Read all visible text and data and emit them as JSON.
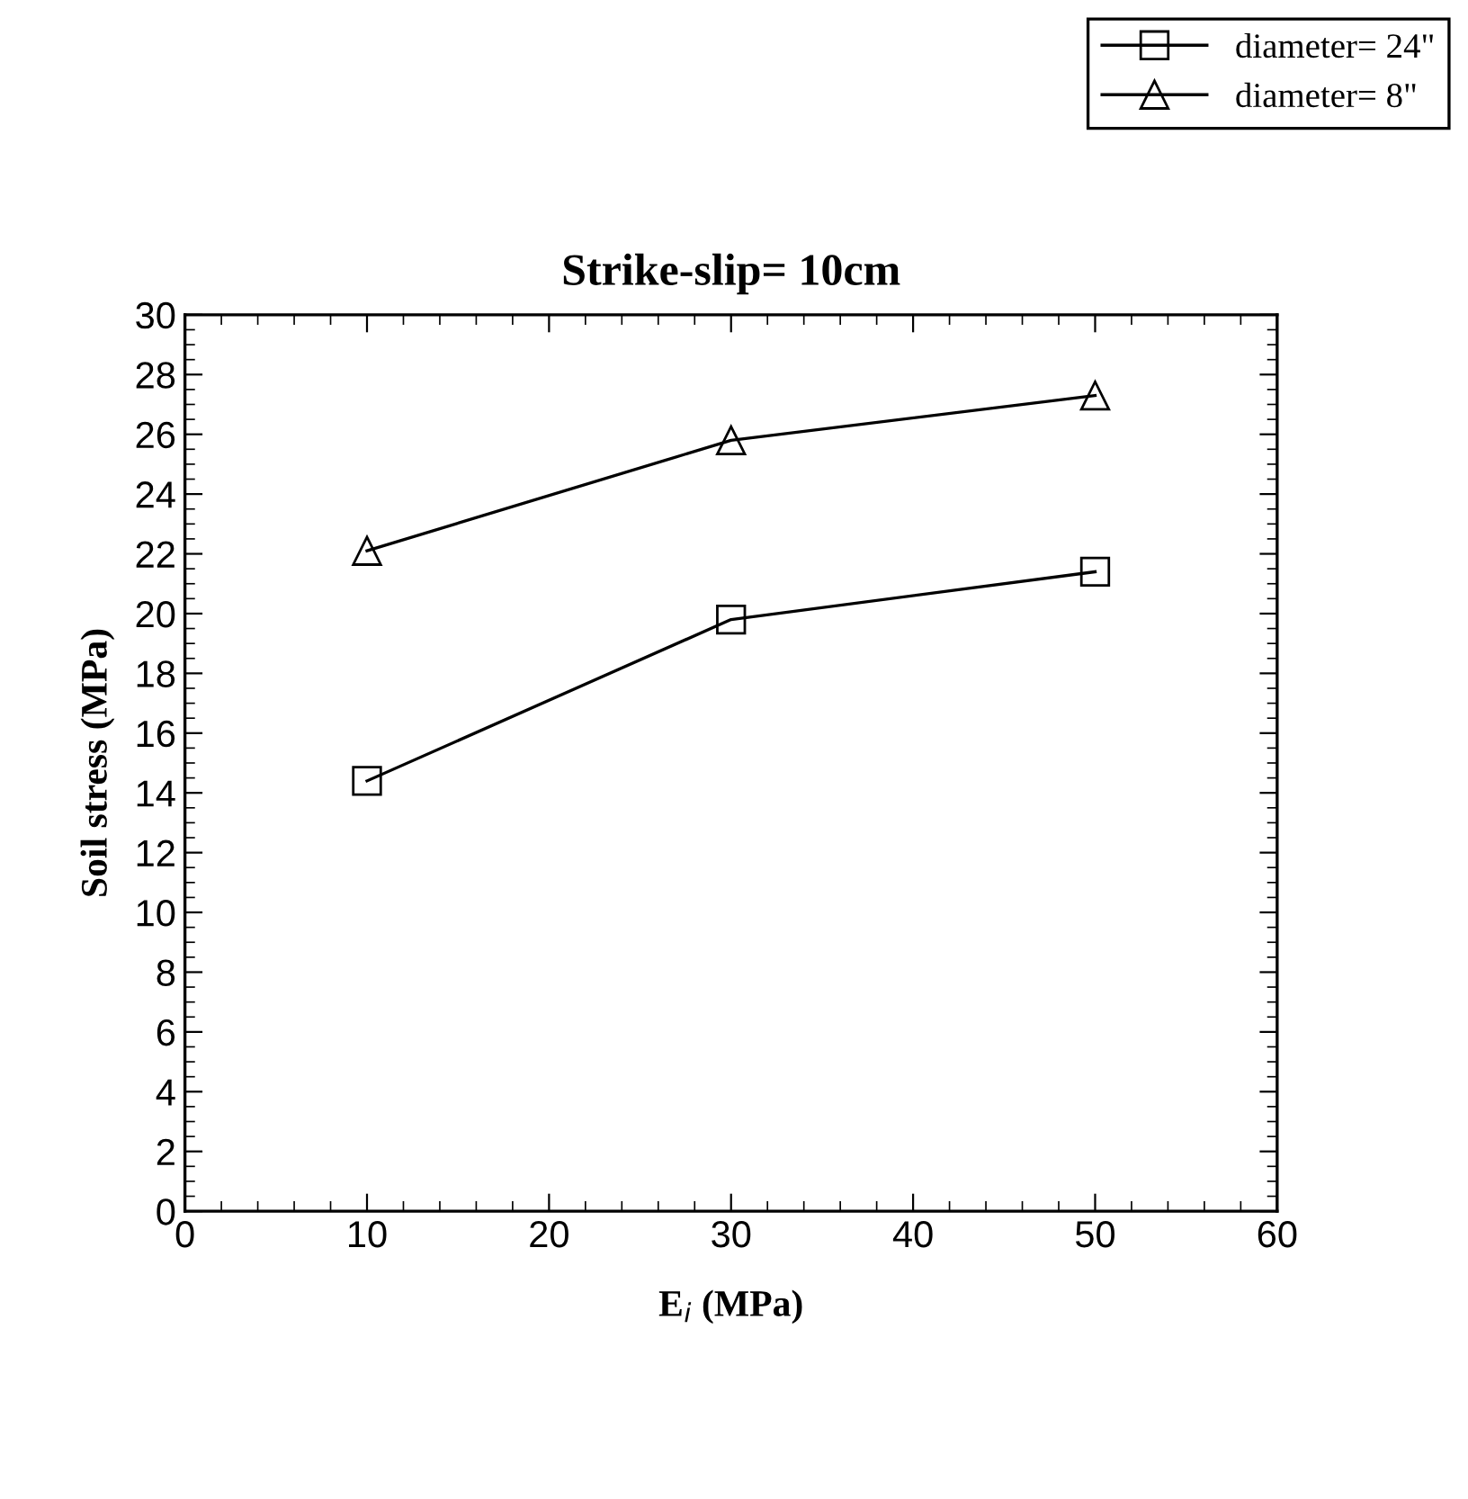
{
  "chart_data": {
    "type": "line",
    "title": "Strike-slip= 10cm",
    "xlabel": "E$_{i}$ (MPa)",
    "ylabel": "Soil stress (MPa)",
    "x": [
      10,
      30,
      50
    ],
    "series": [
      {
        "name": "diameter= 24\"",
        "color": "#000000",
        "marker": "square",
        "values": [
          14.4,
          19.8,
          21.4
        ]
      },
      {
        "name": "diameter= 8\"",
        "color": "#000000",
        "marker": "triangle",
        "values": [
          22.1,
          25.8,
          27.3
        ]
      }
    ],
    "xlim": [
      0,
      60
    ],
    "xticks": [
      0,
      10,
      20,
      30,
      40,
      50,
      60
    ],
    "ylim": [
      0,
      30
    ],
    "yticks": [
      0,
      2,
      4,
      6,
      8,
      10,
      12,
      14,
      16,
      18,
      20,
      22,
      24,
      26,
      28,
      30
    ],
    "grid": false,
    "legend": "top right",
    "line_style": "solid"
  }
}
